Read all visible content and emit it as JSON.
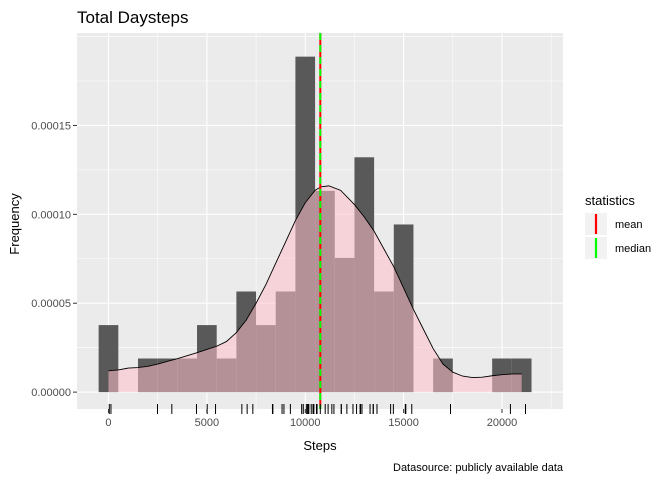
{
  "chart_data": {
    "type": "histogram",
    "title": "Total Daysteps",
    "xlabel": "Steps",
    "ylabel": "Frequency",
    "caption": "Datasource: publicly available data",
    "xlim": [
      -1600,
      23100
    ],
    "ylim": [
      -9.5e-06,
      0.000202
    ],
    "x_ticks": [
      0,
      5000,
      10000,
      15000,
      20000
    ],
    "x_tick_labels": [
      "0",
      "5000",
      "10000",
      "15000",
      "20000"
    ],
    "y_ticks": [
      0,
      5e-05,
      0.0001,
      0.00015
    ],
    "y_tick_labels": [
      "0.00000",
      "0.00005",
      "0.00010",
      "0.00015"
    ],
    "grid": true,
    "background": "#ebebeb",
    "histogram": {
      "bin_width": 1000,
      "bins": [
        {
          "x0": -500,
          "x1": 500,
          "density": 3.77e-05
        },
        {
          "x0": 500,
          "x1": 1500,
          "density": 0
        },
        {
          "x0": 1500,
          "x1": 2500,
          "density": 1.89e-05
        },
        {
          "x0": 2500,
          "x1": 3500,
          "density": 1.89e-05
        },
        {
          "x0": 3500,
          "x1": 4500,
          "density": 1.89e-05
        },
        {
          "x0": 4500,
          "x1": 5500,
          "density": 3.77e-05
        },
        {
          "x0": 5500,
          "x1": 6500,
          "density": 1.89e-05
        },
        {
          "x0": 6500,
          "x1": 7500,
          "density": 5.66e-05
        },
        {
          "x0": 7500,
          "x1": 8500,
          "density": 3.77e-05
        },
        {
          "x0": 8500,
          "x1": 9500,
          "density": 5.66e-05
        },
        {
          "x0": 9500,
          "x1": 10500,
          "density": 0.0001887
        },
        {
          "x0": 10500,
          "x1": 11500,
          "density": 0.0001132
        },
        {
          "x0": 11500,
          "x1": 12500,
          "density": 7.55e-05
        },
        {
          "x0": 12500,
          "x1": 13500,
          "density": 0.0001321
        },
        {
          "x0": 13500,
          "x1": 14500,
          "density": 5.66e-05
        },
        {
          "x0": 14500,
          "x1": 15500,
          "density": 9.43e-05
        },
        {
          "x0": 15500,
          "x1": 16500,
          "density": 0
        },
        {
          "x0": 16500,
          "x1": 17500,
          "density": 1.89e-05
        },
        {
          "x0": 17500,
          "x1": 18500,
          "density": 0
        },
        {
          "x0": 18500,
          "x1": 19500,
          "density": 0
        },
        {
          "x0": 19500,
          "x1": 20500,
          "density": 1.89e-05
        },
        {
          "x0": 20500,
          "x1": 21500,
          "density": 1.89e-05
        }
      ],
      "fill": "#595959"
    },
    "density": {
      "x": [
        0,
        500,
        1000,
        1500,
        2000,
        2500,
        3000,
        3500,
        4000,
        4500,
        5000,
        5500,
        6000,
        6500,
        7000,
        7500,
        8000,
        8500,
        9000,
        9500,
        10000,
        10500,
        10800,
        11200,
        11800,
        12500,
        13000,
        13500,
        14000,
        14500,
        15000,
        15500,
        16000,
        16500,
        17000,
        17500,
        18000,
        18500,
        19000,
        19500,
        20000,
        20500,
        21000
      ],
      "y": [
        1.2e-05,
        1.25e-05,
        1.35e-05,
        1.38e-05,
        1.45e-05,
        1.58e-05,
        1.73e-05,
        1.88e-05,
        2.05e-05,
        2.22e-05,
        2.4e-05,
        2.58e-05,
        2.85e-05,
        3.35e-05,
        4.05e-05,
        5e-05,
        6.05e-05,
        7.25e-05,
        8.45e-05,
        9.65e-05,
        0.0001065,
        0.0001135,
        0.0001155,
        0.000116,
        0.0001135,
        0.0001055,
        9.85e-05,
        9.05e-05,
        8.05e-05,
        7.05e-05,
        5.85e-05,
        4.65e-05,
        3.55e-05,
        2.45e-05,
        1.58e-05,
        1.12e-05,
        9e-06,
        8.2e-06,
        8.4e-06,
        9.2e-06,
        9.8e-06,
        1.02e-05,
        1.02e-05
      ],
      "fill": "#ffc0cb",
      "fill_opacity": 0.55,
      "stroke": "#000000"
    },
    "statistics": [
      {
        "name": "mean",
        "value": 10766,
        "color": "#ff0000"
      },
      {
        "name": "median",
        "value": 10765,
        "color": "#00ff00"
      }
    ],
    "legend": {
      "title": "statistics",
      "position": "right"
    },
    "rug": [
      41,
      126,
      2492,
      3219,
      4472,
      5018,
      5441,
      6778,
      7047,
      7336,
      8334,
      8355,
      8821,
      8918,
      9245,
      9819,
      9900,
      10056,
      10119,
      10139,
      10183,
      10304,
      10395,
      10439,
      10571,
      10600,
      10765,
      11015,
      11162,
      11352,
      11458,
      11834,
      11829,
      12116,
      12426,
      12608,
      12787,
      12811,
      12883,
      13294,
      13452,
      13460,
      13646,
      14339,
      14478,
      15084,
      15098,
      15110,
      15414,
      17382,
      20427,
      21194
    ]
  }
}
